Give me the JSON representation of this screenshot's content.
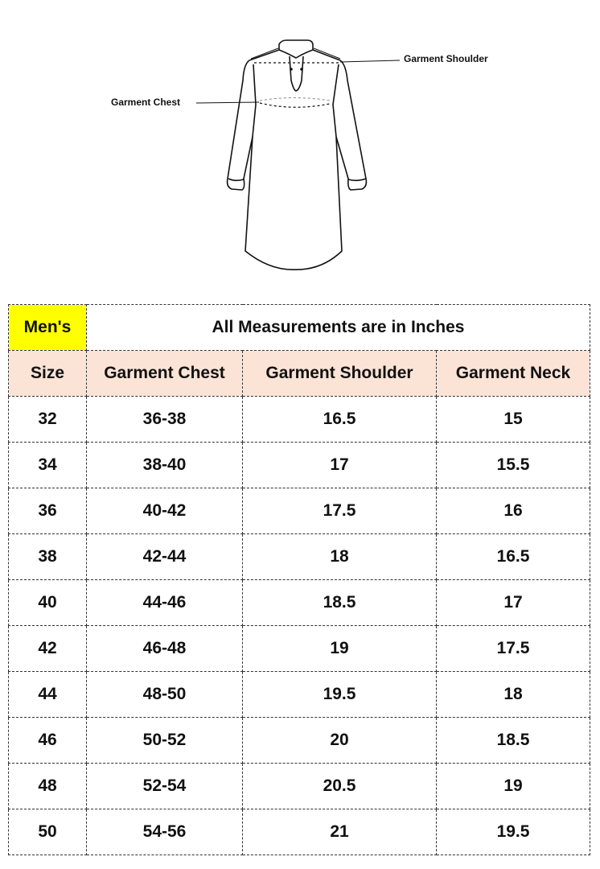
{
  "diagram": {
    "shoulder_label": "Garment Shoulder",
    "chest_label": "Garment Chest"
  },
  "table": {
    "group_label": "Men's",
    "units_note": "All Measurements are in Inches",
    "group_label_color": "#ffff00",
    "header_color": "#fbe3d6",
    "columns": [
      "Size",
      "Garment Chest",
      "Garment Shoulder",
      "Garment Neck"
    ],
    "rows": [
      [
        "32",
        "36-38",
        "16.5",
        "15"
      ],
      [
        "34",
        "38-40",
        "17",
        "15.5"
      ],
      [
        "36",
        "40-42",
        "17.5",
        "16"
      ],
      [
        "38",
        "42-44",
        "18",
        "16.5"
      ],
      [
        "40",
        "44-46",
        "18.5",
        "17"
      ],
      [
        "42",
        "46-48",
        "19",
        "17.5"
      ],
      [
        "44",
        "48-50",
        "19.5",
        "18"
      ],
      [
        "46",
        "50-52",
        "20",
        "18.5"
      ],
      [
        "48",
        "52-54",
        "20.5",
        "19"
      ],
      [
        "50",
        "54-56",
        "21",
        "19.5"
      ]
    ]
  }
}
